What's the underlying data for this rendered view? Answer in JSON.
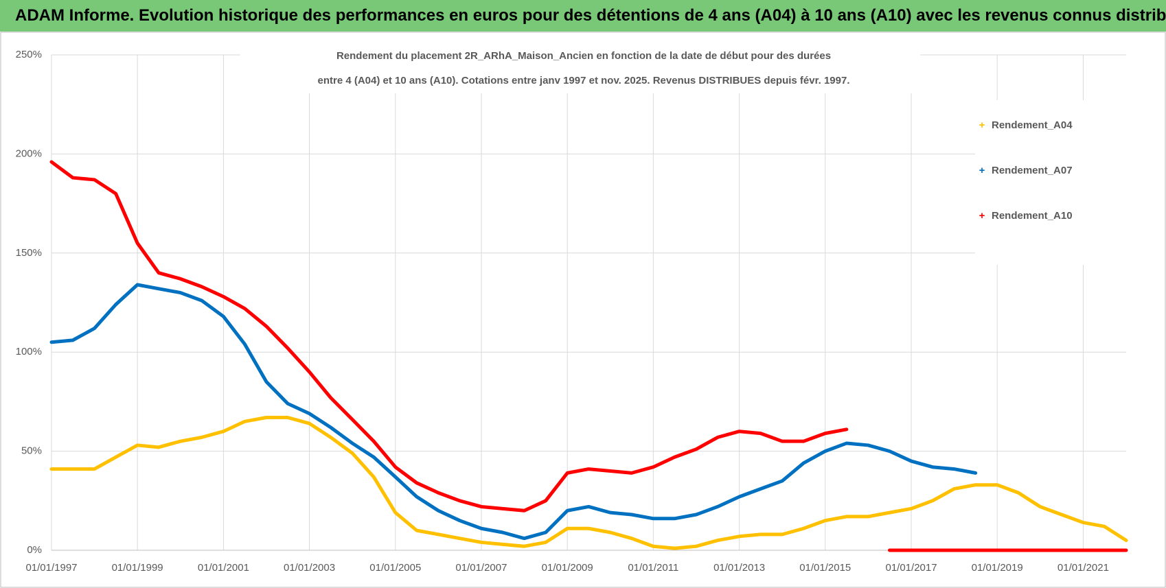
{
  "header": {
    "title": "ADAM Informe. Evolution historique des performances en euros pour des détentions de 4 ans (A04) à 10 ans (A10) avec les revenus connus distribués"
  },
  "chart_data": {
    "type": "line",
    "title": [
      "Rendement du placement 2R_ARhA_Maison_Ancien en fonction de la date de début pour des durées",
      "entre 4 (A04) et 10 ans (A10). Cotations entre janv 1997 et nov. 2025. Revenus DISTRIBUES depuis févr. 1997."
    ],
    "x": [
      "01/01/1997",
      "01/07/1997",
      "01/01/1998",
      "01/07/1998",
      "01/01/1999",
      "01/07/1999",
      "01/01/2000",
      "01/07/2000",
      "01/01/2001",
      "01/07/2001",
      "01/01/2002",
      "01/07/2002",
      "01/01/2003",
      "01/07/2003",
      "01/01/2004",
      "01/07/2004",
      "01/01/2005",
      "01/07/2005",
      "01/01/2006",
      "01/07/2006",
      "01/01/2007",
      "01/07/2007",
      "01/01/2008",
      "01/07/2008",
      "01/01/2009",
      "01/07/2009",
      "01/01/2010",
      "01/07/2010",
      "01/01/2011",
      "01/07/2011",
      "01/01/2012",
      "01/07/2012",
      "01/01/2013",
      "01/07/2013",
      "01/01/2014",
      "01/07/2014",
      "01/01/2015",
      "01/07/2015",
      "01/01/2016",
      "01/07/2016",
      "01/01/2017",
      "01/07/2017",
      "01/01/2018",
      "01/07/2018",
      "01/01/2019",
      "01/07/2019",
      "01/01/2020",
      "01/07/2020",
      "01/01/2021",
      "01/07/2021",
      "01/01/2022"
    ],
    "series": [
      {
        "name": "Rendement_A04",
        "color": "#ffc000",
        "values": [
          41,
          41,
          41,
          47,
          53,
          52,
          55,
          57,
          60,
          65,
          67,
          67,
          64,
          57,
          49,
          37,
          19,
          10,
          8,
          6,
          4,
          3,
          2,
          4,
          11,
          11,
          9,
          6,
          2,
          1,
          2,
          5,
          7,
          8,
          8,
          11,
          15,
          17,
          17,
          19,
          21,
          25,
          31,
          33,
          33,
          29,
          22,
          18,
          14,
          12,
          5
        ]
      },
      {
        "name": "Rendement_A07",
        "color": "#0070c0",
        "values": [
          105,
          106,
          112,
          124,
          134,
          132,
          130,
          126,
          118,
          104,
          85,
          74,
          69,
          62,
          54,
          47,
          37,
          27,
          20,
          15,
          11,
          9,
          6,
          9,
          20,
          22,
          19,
          18,
          16,
          16,
          18,
          22,
          27,
          31,
          35,
          44,
          50,
          54,
          53,
          50,
          45,
          42,
          41,
          39,
          null,
          null,
          null,
          null,
          null,
          null,
          null
        ]
      },
      {
        "name": "Rendement_A10",
        "color": "#ff0000",
        "values": [
          196,
          188,
          187,
          180,
          155,
          140,
          137,
          133,
          128,
          122,
          113,
          102,
          90,
          77,
          66,
          55,
          42,
          34,
          29,
          25,
          22,
          21,
          20,
          25,
          39,
          41,
          40,
          39,
          42,
          47,
          51,
          57,
          60,
          59,
          55,
          55,
          59,
          61,
          null,
          0,
          0,
          0,
          0,
          0,
          0,
          0,
          0,
          0,
          0,
          0,
          0
        ]
      }
    ],
    "xlim": [
      "01/01/1997",
      "01/01/2022"
    ],
    "xticks": [
      "01/01/1997",
      "01/01/1999",
      "01/01/2001",
      "01/01/2003",
      "01/01/2005",
      "01/01/2007",
      "01/01/2009",
      "01/01/2011",
      "01/01/2013",
      "01/01/2015",
      "01/01/2017",
      "01/01/2019",
      "01/01/2021"
    ],
    "ylim": [
      0,
      250
    ],
    "yticks": [
      {
        "value": 0,
        "label": "0%"
      },
      {
        "value": 50,
        "label": "50%"
      },
      {
        "value": 100,
        "label": "100%"
      },
      {
        "value": 150,
        "label": "150%"
      },
      {
        "value": 200,
        "label": "200%"
      },
      {
        "value": 250,
        "label": "250%"
      }
    ],
    "grid": true,
    "legend": "right"
  }
}
